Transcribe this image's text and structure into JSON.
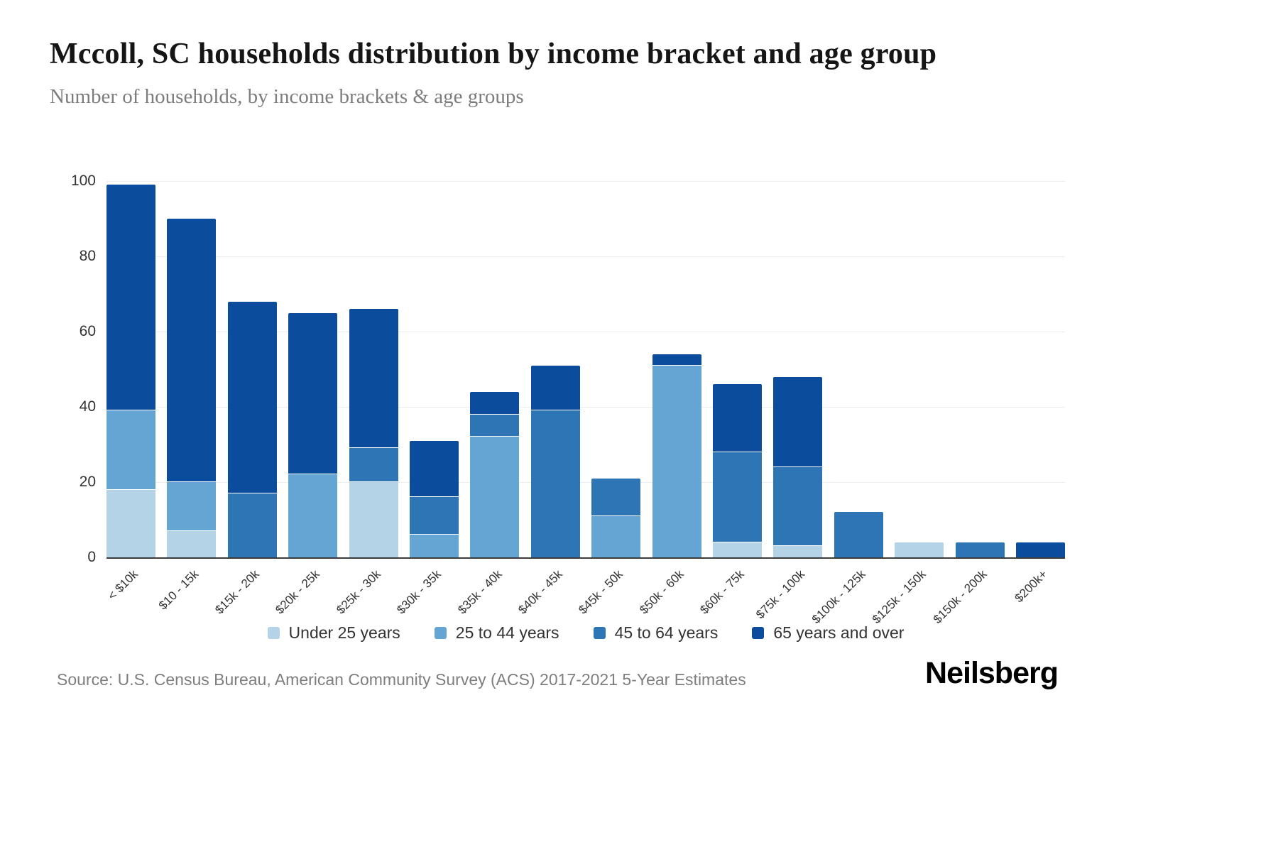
{
  "header": {
    "title": "Mccoll, SC households distribution by income bracket and age group",
    "subtitle": "Number of households, by income brackets & age groups"
  },
  "footer": {
    "source": "Source: U.S. Census Bureau, American Community Survey (ACS) 2017-2021 5-Year Estimates",
    "logo": "Neilsberg"
  },
  "chart_data": {
    "type": "bar",
    "stacked": true,
    "title": "Mccoll, SC households distribution by income bracket and age group",
    "subtitle": "Number of households, by income brackets & age groups",
    "xlabel": "",
    "ylabel": "",
    "ylim": [
      0,
      100
    ],
    "yticks": [
      0,
      20,
      40,
      60,
      80,
      100
    ],
    "grid": "horizontal",
    "legend_position": "bottom",
    "categories": [
      "< $10k",
      "$10 - 15k",
      "$15k - 20k",
      "$20k - 25k",
      "$25k - 30k",
      "$30k - 35k",
      "$35k - 40k",
      "$40k - 45k",
      "$45k - 50k",
      "$50k - 60k",
      "$60k - 75k",
      "$75k - 100k",
      "$100k - 125k",
      "$125k - 150k",
      "$150k - 200k",
      "$200k+"
    ],
    "series": [
      {
        "name": "Under 25 years",
        "color": "#b5d3e7",
        "values": [
          18,
          7,
          0,
          0,
          20,
          0,
          0,
          0,
          0,
          0,
          4,
          3,
          0,
          4,
          0,
          0
        ]
      },
      {
        "name": "25 to 44 years",
        "color": "#64a5d3",
        "values": [
          21,
          13,
          0,
          22,
          0,
          6,
          32,
          0,
          11,
          51,
          0,
          0,
          0,
          0,
          0,
          0
        ]
      },
      {
        "name": "45 to 64 years",
        "color": "#2d75b4",
        "values": [
          0,
          0,
          17,
          0,
          9,
          10,
          6,
          39,
          10,
          0,
          24,
          21,
          12,
          0,
          4,
          0
        ]
      },
      {
        "name": "65 years and over",
        "color": "#0b4d9c",
        "values": [
          60,
          70,
          51,
          43,
          37,
          15,
          6,
          12,
          0,
          3,
          18,
          24,
          0,
          0,
          0,
          4
        ]
      }
    ],
    "totals": [
      99,
      90,
      68,
      65,
      66,
      31,
      44,
      51,
      21,
      54,
      46,
      48,
      12,
      4,
      4,
      4
    ]
  }
}
